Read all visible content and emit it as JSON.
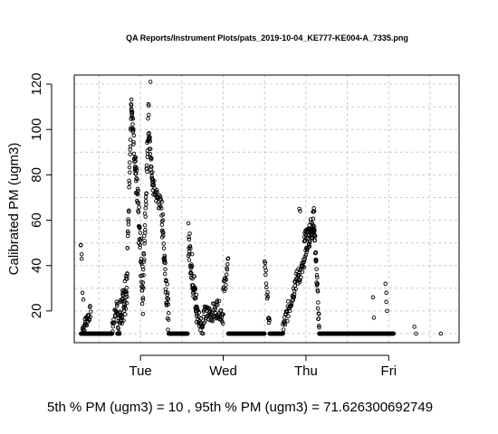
{
  "chart_data": {
    "type": "scatter",
    "title": "QA Reports/Instrument Plots/pats_2019-10-04_KE777-KE004-A_7335.png",
    "xlabel": "",
    "ylabel": "Calibrated PM (ugm3)",
    "x_ticks": [
      "Tue",
      "Wed",
      "Thu",
      "Fri"
    ],
    "y_ticks": [
      20,
      40,
      60,
      80,
      100,
      120
    ],
    "xlim": [
      -0.8,
      3.85
    ],
    "ylim": [
      6,
      124
    ],
    "grid": true,
    "marker": "open-circle",
    "point_color": "#000000",
    "grid_color": "#cccccc",
    "x_units": "days (0 = Tue)",
    "footer": "5th % PM (ugm3) =  10 , 95th % PM (ugm3)  =  71.626300692749",
    "stats": {
      "p5": 10,
      "p95": 71.626300692749
    },
    "segments": [
      {
        "x0": -0.72,
        "x1": -0.72,
        "kind": "flat",
        "v": 49
      },
      {
        "x0": -0.72,
        "x1": -0.55,
        "kind": "flat",
        "v": 10
      },
      {
        "x0": -0.7,
        "x1": -0.6,
        "kind": "ramp",
        "a": 12,
        "b": 20,
        "noise": 3
      },
      {
        "x0": -0.58,
        "x1": -0.34,
        "kind": "flat",
        "v": 10
      },
      {
        "x0": -0.34,
        "x1": -0.28,
        "kind": "ramp",
        "a": 12,
        "b": 24,
        "noise": 3
      },
      {
        "x0": -0.28,
        "x1": -0.16,
        "kind": "ramp",
        "a": 12,
        "b": 30,
        "noise": 8
      },
      {
        "x0": -0.16,
        "x1": -0.11,
        "kind": "ramp",
        "a": 40,
        "b": 114,
        "noise": 5
      },
      {
        "x0": -0.11,
        "x1": -0.06,
        "kind": "ramp",
        "a": 112,
        "b": 82,
        "noise": 5
      },
      {
        "x0": -0.06,
        "x1": 0.03,
        "kind": "ramp",
        "a": 82,
        "b": 28,
        "noise": 10
      },
      {
        "x0": 0.03,
        "x1": 0.1,
        "kind": "ramp",
        "a": 30,
        "b": 110,
        "noise": 8
      },
      {
        "x0": 0.1,
        "x1": 0.15,
        "kind": "ramp",
        "a": 98,
        "b": 75,
        "noise": 5
      },
      {
        "x0": 0.15,
        "x1": 0.26,
        "kind": "ramp",
        "a": 75,
        "b": 65,
        "noise": 4
      },
      {
        "x0": 0.26,
        "x1": 0.34,
        "kind": "ramp",
        "a": 62,
        "b": 15,
        "noise": 8
      },
      {
        "x0": 0.34,
        "x1": 0.57,
        "kind": "flat",
        "v": 10
      },
      {
        "x0": 0.58,
        "x1": 0.68,
        "kind": "ramp",
        "a": 52,
        "b": 20,
        "noise": 8
      },
      {
        "x0": 0.68,
        "x1": 0.76,
        "kind": "ramp",
        "a": 20,
        "b": 12,
        "noise": 4
      },
      {
        "x0": 0.76,
        "x1": 0.92,
        "kind": "ramp",
        "a": 18,
        "b": 20,
        "noise": 4
      },
      {
        "x0": 0.92,
        "x1": 1.0,
        "kind": "ramp",
        "a": 22,
        "b": 18,
        "noise": 4
      },
      {
        "x0": 1.0,
        "x1": 1.06,
        "kind": "ramp",
        "a": 28,
        "b": 40,
        "noise": 4
      },
      {
        "x0": 1.06,
        "x1": 1.5,
        "kind": "flat",
        "v": 10
      },
      {
        "x0": 1.5,
        "x1": 1.56,
        "kind": "ramp",
        "a": 44,
        "b": 12,
        "noise": 4
      },
      {
        "x0": 1.56,
        "x1": 1.72,
        "kind": "flat",
        "v": 10
      },
      {
        "x0": 1.72,
        "x1": 1.86,
        "kind": "ramp",
        "a": 12,
        "b": 30,
        "noise": 4
      },
      {
        "x0": 1.86,
        "x1": 1.98,
        "kind": "ramp",
        "a": 32,
        "b": 40,
        "noise": 4
      },
      {
        "x0": 1.98,
        "x1": 2.1,
        "kind": "ramp",
        "a": 48,
        "b": 60,
        "noise": 6
      },
      {
        "x0": 2.1,
        "x1": 2.16,
        "kind": "ramp",
        "a": 58,
        "b": 12,
        "noise": 5
      },
      {
        "x0": 2.16,
        "x1": 3.06,
        "kind": "flat",
        "v": 10
      }
    ],
    "extra_points": [
      [
        -0.71,
        43
      ],
      [
        -0.71,
        45
      ],
      [
        -0.7,
        28
      ],
      [
        -0.69,
        25
      ],
      [
        0.12,
        121
      ],
      [
        1.92,
        65
      ],
      [
        1.93,
        64
      ],
      [
        2.81,
        26
      ],
      [
        2.82,
        17
      ],
      [
        2.96,
        32
      ],
      [
        2.97,
        28
      ],
      [
        2.97,
        24
      ],
      [
        2.98,
        20
      ],
      [
        3.31,
        13
      ],
      [
        3.33,
        10
      ],
      [
        3.63,
        10
      ]
    ]
  }
}
